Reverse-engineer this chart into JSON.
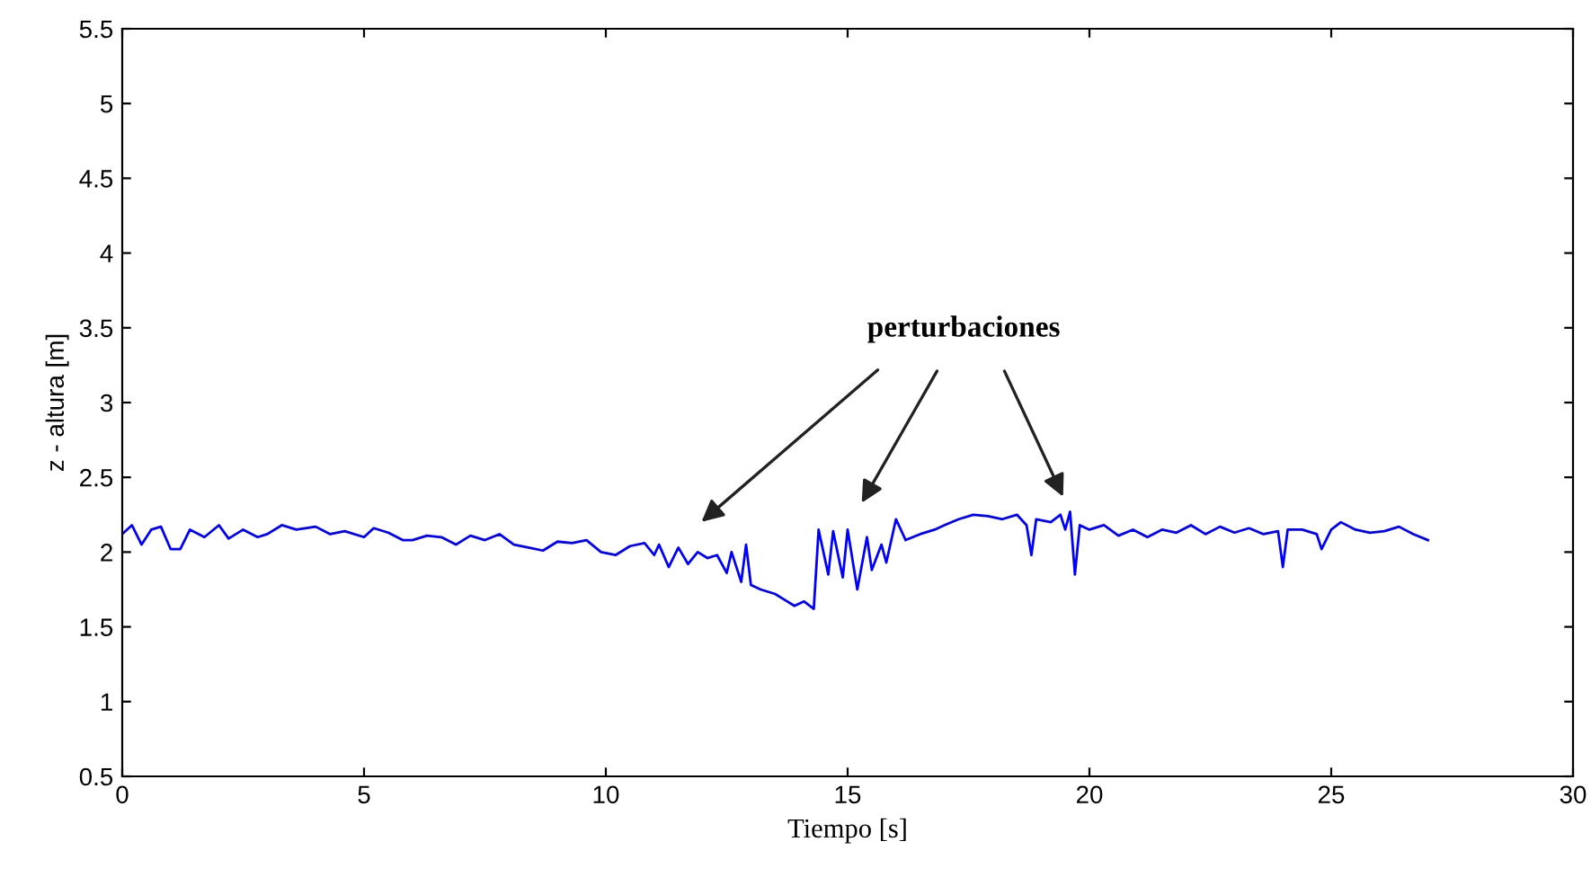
{
  "chart_data": {
    "type": "line",
    "xlabel": "Tiempo [s]",
    "ylabel": "z - altura [m]",
    "xlim": [
      0,
      30
    ],
    "xticks": [
      0,
      5,
      10,
      15,
      20,
      25,
      30
    ],
    "ylim": [
      0.5,
      5.5
    ],
    "yticks": [
      0.5,
      1,
      1.5,
      2,
      2.5,
      3,
      3.5,
      4,
      4.5,
      5,
      5.5
    ],
    "grid": false,
    "annotations": [
      "perturbaciones"
    ],
    "series": [
      {
        "color": "#0000ff",
        "x": [
          0,
          0.2,
          0.4,
          0.6,
          0.8,
          1.0,
          1.2,
          1.4,
          1.7,
          2.0,
          2.2,
          2.5,
          2.8,
          3.0,
          3.3,
          3.6,
          4.0,
          4.3,
          4.6,
          5.0,
          5.2,
          5.5,
          5.8,
          6.0,
          6.3,
          6.6,
          6.9,
          7.2,
          7.5,
          7.8,
          8.1,
          8.4,
          8.7,
          9.0,
          9.3,
          9.6,
          9.9,
          10.2,
          10.5,
          10.8,
          11.0,
          11.1,
          11.3,
          11.5,
          11.7,
          11.9,
          12.1,
          12.3,
          12.5,
          12.6,
          12.8,
          12.9,
          13.0,
          13.2,
          13.5,
          13.7,
          13.9,
          14.1,
          14.3,
          14.4,
          14.6,
          14.7,
          14.9,
          15.0,
          15.2,
          15.4,
          15.5,
          15.7,
          15.8,
          16.0,
          16.2,
          16.5,
          16.8,
          17.0,
          17.3,
          17.6,
          17.9,
          18.2,
          18.5,
          18.7,
          18.8,
          18.9,
          19.2,
          19.4,
          19.5,
          19.6,
          19.7,
          19.8,
          20.0,
          20.3,
          20.6,
          20.9,
          21.2,
          21.5,
          21.8,
          22.1,
          22.4,
          22.7,
          23.0,
          23.3,
          23.6,
          23.9,
          24.0,
          24.1,
          24.4,
          24.7,
          24.8,
          25.0,
          25.2,
          25.5,
          25.8,
          26.1,
          26.4,
          26.7,
          27.0
        ],
        "values": [
          2.12,
          2.18,
          2.05,
          2.15,
          2.17,
          2.02,
          2.02,
          2.15,
          2.1,
          2.18,
          2.09,
          2.15,
          2.1,
          2.12,
          2.18,
          2.15,
          2.17,
          2.12,
          2.14,
          2.1,
          2.16,
          2.13,
          2.08,
          2.08,
          2.11,
          2.1,
          2.05,
          2.11,
          2.08,
          2.12,
          2.05,
          2.03,
          2.01,
          2.07,
          2.06,
          2.08,
          2.0,
          1.98,
          2.04,
          2.06,
          1.98,
          2.05,
          1.9,
          2.03,
          1.92,
          2.0,
          1.96,
          1.98,
          1.86,
          2.0,
          1.8,
          2.05,
          1.78,
          1.75,
          1.72,
          1.68,
          1.64,
          1.67,
          1.62,
          2.15,
          1.85,
          2.14,
          1.83,
          2.15,
          1.75,
          2.1,
          1.88,
          2.05,
          1.93,
          2.22,
          2.08,
          2.12,
          2.15,
          2.18,
          2.22,
          2.25,
          2.24,
          2.22,
          2.25,
          2.18,
          1.98,
          2.22,
          2.2,
          2.25,
          2.15,
          2.27,
          1.85,
          2.18,
          2.15,
          2.18,
          2.11,
          2.15,
          2.1,
          2.15,
          2.13,
          2.18,
          2.12,
          2.17,
          2.13,
          2.16,
          2.12,
          2.14,
          1.9,
          2.15,
          2.15,
          2.12,
          2.02,
          2.15,
          2.2,
          2.15,
          2.13,
          2.14,
          2.17,
          2.12,
          2.08
        ]
      }
    ]
  }
}
